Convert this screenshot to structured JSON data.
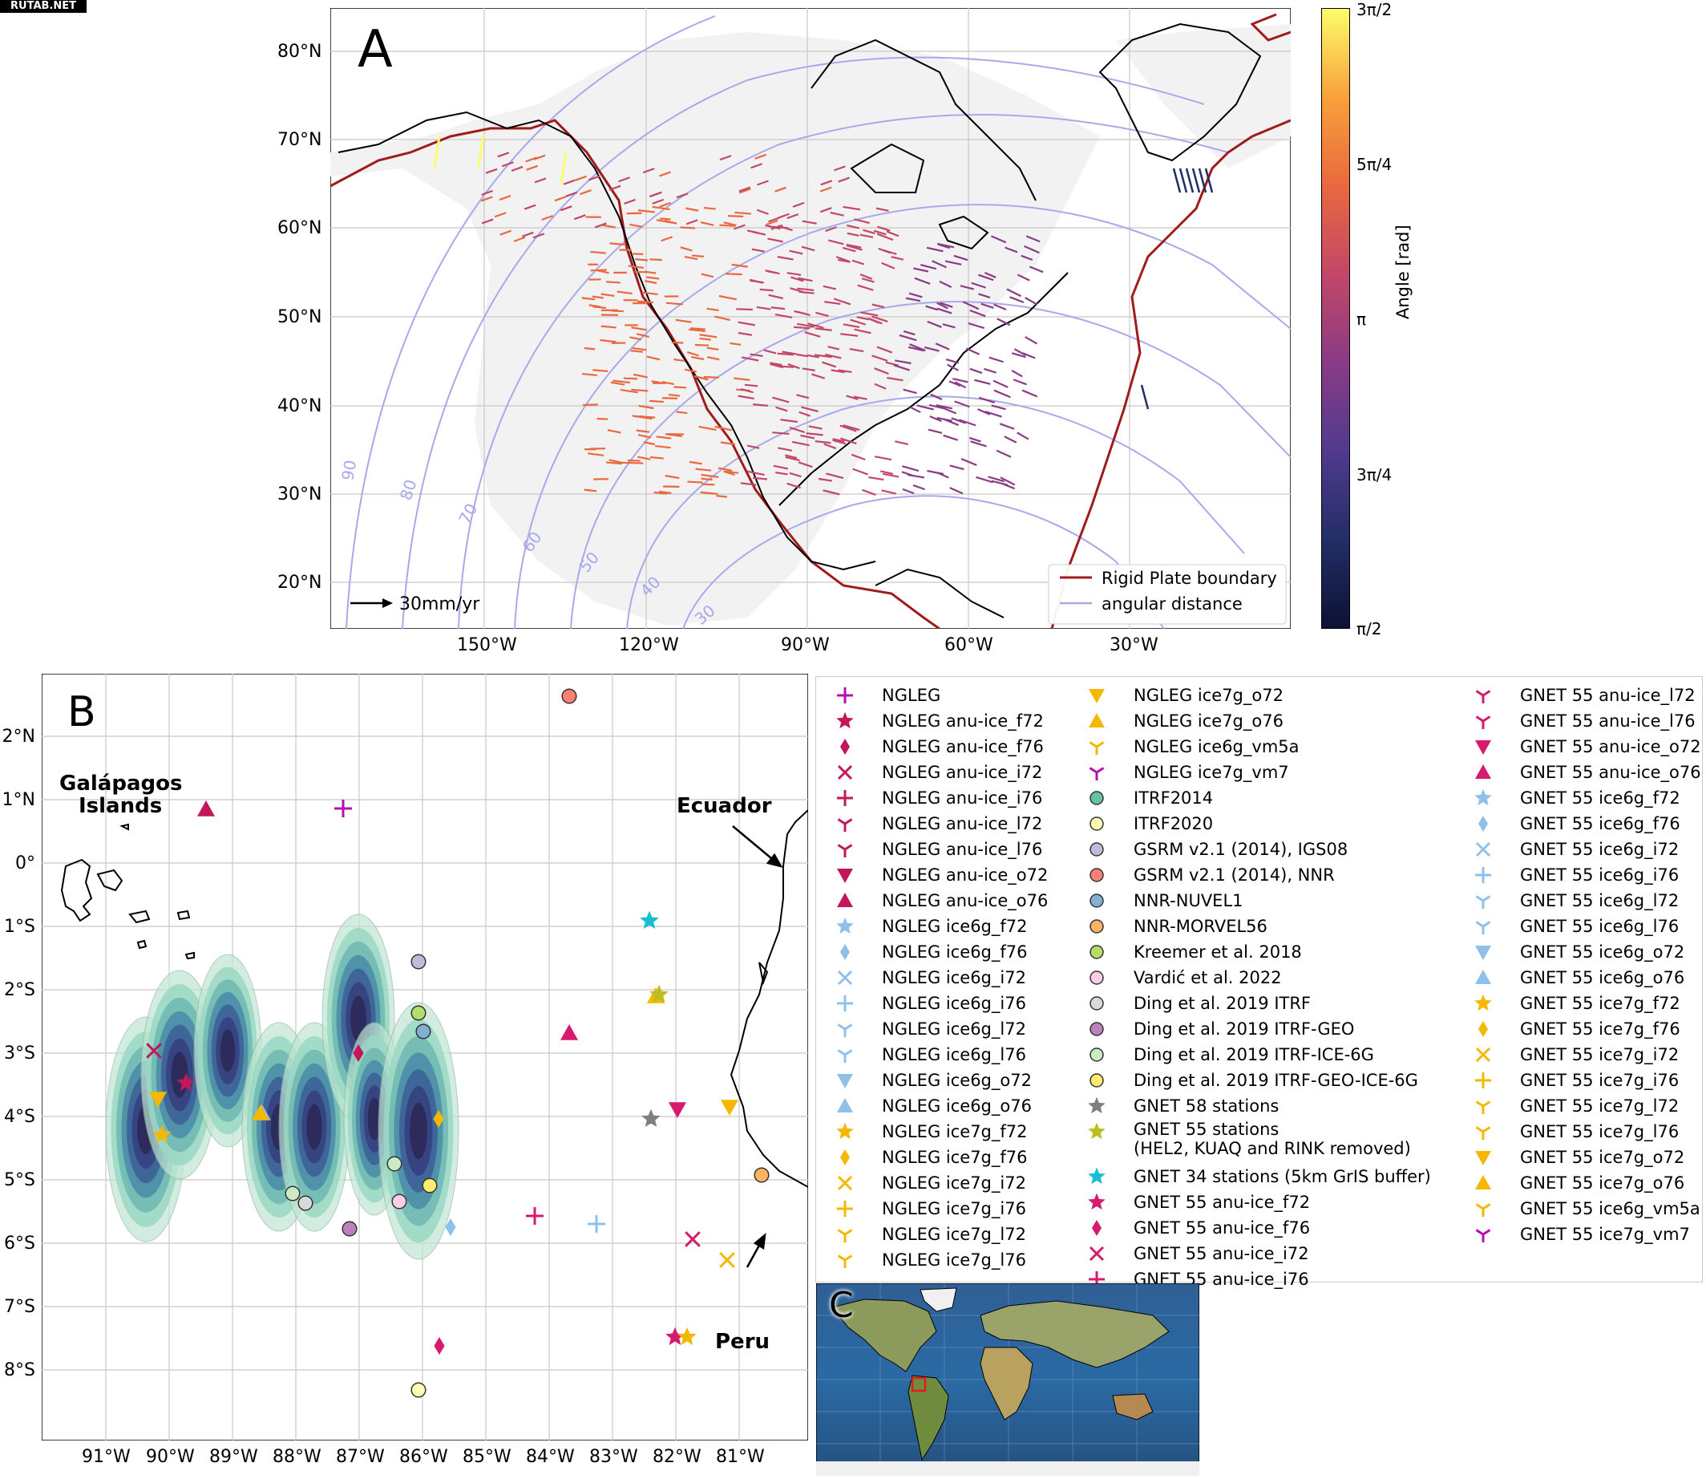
{
  "watermark": "RUTAB.NET",
  "panelA": {
    "letter": "A",
    "lat_ticks": [
      "80°N",
      "70°N",
      "60°N",
      "50°N",
      "40°N",
      "30°N",
      "20°N"
    ],
    "lon_ticks": [
      "150°W",
      "120°W",
      "90°W",
      "60°W",
      "30°W"
    ],
    "distance_labels": [
      "90",
      "80",
      "70",
      "60",
      "50",
      "40",
      "30"
    ],
    "scale_label": "30mm/yr",
    "legend": {
      "boundary": "Rigid Plate boundary",
      "distance": "angular distance"
    },
    "colorbar": {
      "title": "Angle [rad]",
      "ticks": [
        "3π/2",
        "5π/4",
        "π",
        "3π/4",
        "π/2"
      ],
      "colors": [
        "#fcfd6b",
        "#f8a13a",
        "#e9683f",
        "#c24768",
        "#8a3b85",
        "#503b8e",
        "#232d66",
        "#0c1233"
      ]
    },
    "colors": {
      "plate_boundary": "#a01c1c",
      "distance_line": "#a9a9ea",
      "land": "#f2f2f2"
    }
  },
  "panelB": {
    "letter": "B",
    "lat_ticks": [
      "2°N",
      "1°N",
      "0°",
      "1°S",
      "2°S",
      "3°S",
      "4°S",
      "5°S",
      "6°S",
      "7°S",
      "8°S"
    ],
    "lon_ticks": [
      "91°W",
      "90°W",
      "89°W",
      "88°W",
      "87°W",
      "86°W",
      "85°W",
      "84°W",
      "83°W",
      "82°W",
      "81°W"
    ],
    "annotations": {
      "galapagos_line1": "Galápagos",
      "galapagos_line2": "Islands",
      "ecuador": "Ecuador",
      "peru": "Peru"
    }
  },
  "panelC": {
    "letter": "C"
  },
  "legend": {
    "col1": [
      {
        "label": "NGLEG",
        "marker": "plus",
        "color": "#b30fb3"
      },
      {
        "label": "NGLEG anu-ice_f72",
        "marker": "star",
        "color": "#c2185b"
      },
      {
        "label": "NGLEG anu-ice_f76",
        "marker": "diamond",
        "color": "#c2185b"
      },
      {
        "label": "NGLEG anu-ice_i72",
        "marker": "x",
        "color": "#c2185b"
      },
      {
        "label": "NGLEG anu-ice_i76",
        "marker": "plus",
        "color": "#c2185b"
      },
      {
        "label": "NGLEG anu-ice_l72",
        "marker": "tri",
        "color": "#c2185b"
      },
      {
        "label": "NGLEG anu-ice_l76",
        "marker": "tri",
        "color": "#c2185b"
      },
      {
        "label": "NGLEG anu-ice_o72",
        "marker": "tridown",
        "color": "#c2185b"
      },
      {
        "label": "NGLEG anu-ice_o76",
        "marker": "triup",
        "color": "#c2185b"
      },
      {
        "label": "NGLEG ice6g_f72",
        "marker": "star",
        "color": "#8ec0ea"
      },
      {
        "label": "NGLEG ice6g_f76",
        "marker": "diamond",
        "color": "#8ec0ea"
      },
      {
        "label": "NGLEG ice6g_i72",
        "marker": "x",
        "color": "#8ec0ea"
      },
      {
        "label": "NGLEG ice6g_i76",
        "marker": "plus",
        "color": "#8ec0ea"
      },
      {
        "label": "NGLEG ice6g_l72",
        "marker": "tri",
        "color": "#8ec0ea"
      },
      {
        "label": "NGLEG ice6g_l76",
        "marker": "tri",
        "color": "#8ec0ea"
      },
      {
        "label": "NGLEG ice6g_o72",
        "marker": "tridown",
        "color": "#8ec0ea"
      },
      {
        "label": "NGLEG ice6g_o76",
        "marker": "triup",
        "color": "#8ec0ea"
      },
      {
        "label": "NGLEG ice7g_f72",
        "marker": "star",
        "color": "#f5b800"
      },
      {
        "label": "NGLEG ice7g_f76",
        "marker": "diamond",
        "color": "#f5b800"
      },
      {
        "label": "NGLEG ice7g_i72",
        "marker": "x",
        "color": "#f5b800"
      },
      {
        "label": "NGLEG ice7g_i76",
        "marker": "plus",
        "color": "#f5b800"
      },
      {
        "label": "NGLEG ice7g_l72",
        "marker": "tri",
        "color": "#f5b800"
      },
      {
        "label": "NGLEG ice7g_l76",
        "marker": "tri",
        "color": "#f5b800"
      }
    ],
    "col2": [
      {
        "label": "NGLEG ice7g_o72",
        "marker": "tridown",
        "color": "#f5b800"
      },
      {
        "label": "NGLEG ice7g_o76",
        "marker": "triup",
        "color": "#f5b800"
      },
      {
        "label": "NGLEG ice6g_vm5a",
        "marker": "tri",
        "color": "#f5b800"
      },
      {
        "label": "NGLEG ice7g_vm7",
        "marker": "tri",
        "color": "#b30fb3"
      },
      {
        "label": "ITRF2014",
        "marker": "circle",
        "color": "#66c2a5"
      },
      {
        "label": "ITRF2020",
        "marker": "circle",
        "color": "#ffffb3"
      },
      {
        "label": "GSRM v2.1 (2014), IGS08",
        "marker": "circle",
        "color": "#bebada"
      },
      {
        "label": "GSRM v2.1 (2014), NNR",
        "marker": "circle",
        "color": "#fb8072"
      },
      {
        "label": "NNR-NUVEL1",
        "marker": "circle",
        "color": "#80b1d3"
      },
      {
        "label": "NNR-MORVEL56",
        "marker": "circle",
        "color": "#fdb462"
      },
      {
        "label": "Kreemer et al. 2018",
        "marker": "circle",
        "color": "#b3de69"
      },
      {
        "label": "Vardić et al. 2022",
        "marker": "circle",
        "color": "#fccde5"
      },
      {
        "label": "Ding et al. 2019 ITRF",
        "marker": "circle",
        "color": "#d9d9d9"
      },
      {
        "label": "Ding et al. 2019 ITRF-GEO",
        "marker": "circle",
        "color": "#bc80bd"
      },
      {
        "label": "Ding et al. 2019 ITRF-ICE-6G",
        "marker": "circle",
        "color": "#ccebc5"
      },
      {
        "label": "Ding et al. 2019 ITRF-GEO-ICE-6G",
        "marker": "circle",
        "color": "#ffed6f"
      },
      {
        "label": "GNET 58 stations",
        "marker": "star",
        "color": "#7f7f7f"
      },
      {
        "label": "GNET 55 stations\n(HEL2, KUAQ and RINK removed)",
        "marker": "star",
        "color": "#bcbd22",
        "tall": true
      },
      {
        "label": "GNET 34 stations (5km GrIS buffer)",
        "marker": "star",
        "color": "#17becf"
      },
      {
        "label": "GNET 55 anu-ice_f72",
        "marker": "star",
        "color": "#d61a6e"
      },
      {
        "label": "GNET 55 anu-ice_f76",
        "marker": "diamond",
        "color": "#d61a6e"
      },
      {
        "label": "GNET 55 anu-ice_i72",
        "marker": "x",
        "color": "#d61a6e"
      },
      {
        "label": "GNET 55 anu-ice_i76",
        "marker": "plus",
        "color": "#d61a6e"
      }
    ],
    "col3": [
      {
        "label": "GNET 55 anu-ice_l72",
        "marker": "tri",
        "color": "#d61a6e"
      },
      {
        "label": "GNET 55 anu-ice_l76",
        "marker": "tri",
        "color": "#d61a6e"
      },
      {
        "label": "GNET 55 anu-ice_o72",
        "marker": "tridown",
        "color": "#d61a6e"
      },
      {
        "label": "GNET 55 anu-ice_o76",
        "marker": "triup",
        "color": "#d61a6e"
      },
      {
        "label": "GNET 55 ice6g_f72",
        "marker": "star",
        "color": "#8ec0ea"
      },
      {
        "label": "GNET 55 ice6g_f76",
        "marker": "diamond",
        "color": "#8ec0ea"
      },
      {
        "label": "GNET 55 ice6g_i72",
        "marker": "x",
        "color": "#8ec0ea"
      },
      {
        "label": "GNET 55 ice6g_i76",
        "marker": "plus",
        "color": "#8ec0ea"
      },
      {
        "label": "GNET 55 ice6g_l72",
        "marker": "tri",
        "color": "#8ec0ea"
      },
      {
        "label": "GNET 55 ice6g_l76",
        "marker": "tri",
        "color": "#8ec0ea"
      },
      {
        "label": "GNET 55 ice6g_o72",
        "marker": "tridown",
        "color": "#8ec0ea"
      },
      {
        "label": "GNET 55 ice6g_o76",
        "marker": "triup",
        "color": "#8ec0ea"
      },
      {
        "label": "GNET 55 ice7g_f72",
        "marker": "star",
        "color": "#f5b800"
      },
      {
        "label": "GNET 55 ice7g_f76",
        "marker": "diamond",
        "color": "#f5b800"
      },
      {
        "label": "GNET 55 ice7g_i72",
        "marker": "x",
        "color": "#f5b800"
      },
      {
        "label": "GNET 55 ice7g_i76",
        "marker": "plus",
        "color": "#f5b800"
      },
      {
        "label": "GNET 55 ice7g_l72",
        "marker": "tri",
        "color": "#f5b800"
      },
      {
        "label": "GNET 55 ice7g_l76",
        "marker": "tri",
        "color": "#f5b800"
      },
      {
        "label": "GNET 55 ice7g_o72",
        "marker": "tridown",
        "color": "#f5b800"
      },
      {
        "label": "GNET 55 ice7g_o76",
        "marker": "triup",
        "color": "#f5b800"
      },
      {
        "label": "GNET 55 ice6g_vm5a",
        "marker": "tri",
        "color": "#f5b800"
      },
      {
        "label": "GNET 55 ice7g_vm7",
        "marker": "tri",
        "color": "#b30fb3"
      }
    ]
  }
}
